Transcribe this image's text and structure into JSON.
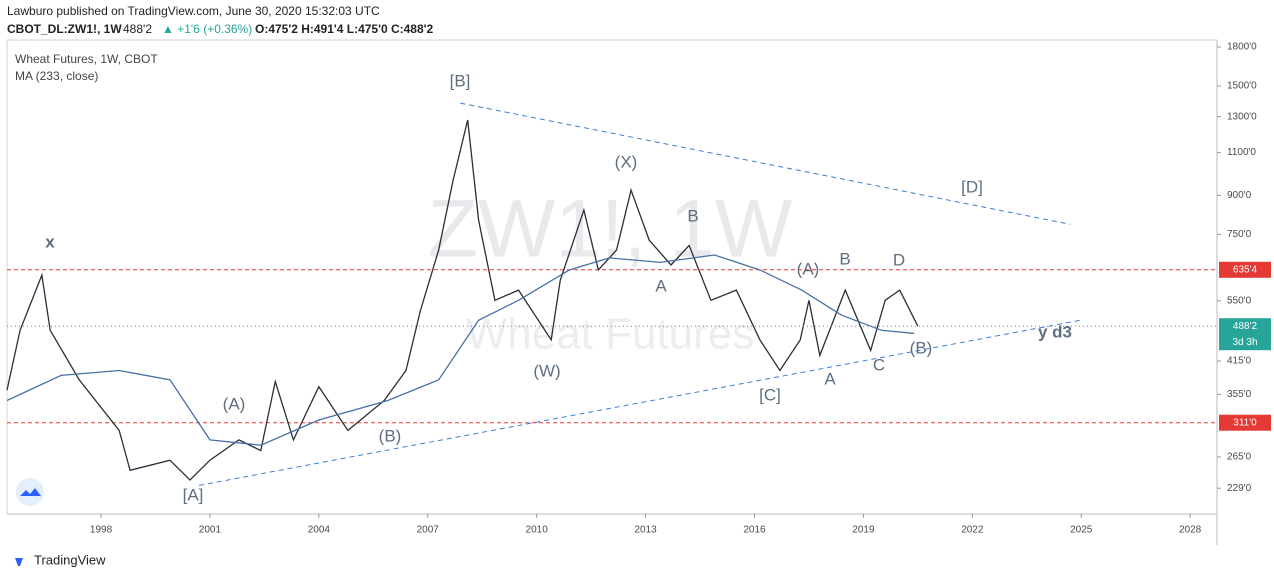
{
  "header": {
    "publisher": "Lawburo published on TradingView.com, June 30, 2020 15:32:03 UTC",
    "symbol": "CBOT_DL:ZW1!, 1W",
    "last": "488'2",
    "change": "▲ +1'6 (+0.36%)",
    "ohlc": "O:475'2 H:491'4 L:475'0 C:488'2"
  },
  "legend": {
    "title": "Wheat Futures, 1W, CBOT",
    "indicator": "MA (233, close)"
  },
  "watermark": {
    "symbol": "ZW1!, 1W",
    "name": "Wheat Futures"
  },
  "footer": {
    "brand": "TradingView"
  },
  "annotations": [
    "x",
    "[B]",
    "(X)",
    "B",
    "[D]",
    "(A)",
    "B",
    "D",
    "A",
    "(W)",
    "[C]",
    "A",
    "C",
    "(B)",
    "y d3",
    "(A)",
    "(B)",
    "[A]"
  ],
  "chart_data": {
    "type": "line",
    "log_scale": true,
    "grid": false,
    "xlim": [
      1995.41,
      2028.74
    ],
    "ylim": [
      203,
      1860
    ],
    "xticks": [
      1998,
      2001,
      2004,
      2007,
      2010,
      2013,
      2016,
      2019,
      2022,
      2025,
      2028
    ],
    "yticks": [
      {
        "value": 1800,
        "label": "1800'0"
      },
      {
        "value": 1500,
        "label": "1500'0"
      },
      {
        "value": 1300,
        "label": "1300'0"
      },
      {
        "value": 1100,
        "label": "1100'0"
      },
      {
        "value": 900,
        "label": "900'0"
      },
      {
        "value": 750,
        "label": "750'0"
      },
      {
        "value": 550,
        "label": "550'0"
      },
      {
        "value": 415,
        "label": "415'0"
      },
      {
        "value": 355,
        "label": "355'0"
      },
      {
        "value": 265,
        "label": "265'0"
      },
      {
        "value": 229,
        "label": "229'0"
      }
    ],
    "series": [
      {
        "name": "ZW1!",
        "color": "#2a2e39",
        "x": [
          1995.41,
          1995.77,
          1996.37,
          1996.6,
          1997.4,
          1998.5,
          1998.8,
          1999.9,
          2000.45,
          2001.0,
          2001.8,
          2002.4,
          2002.8,
          2003.3,
          2004.0,
          2004.8,
          2005.8,
          2006.4,
          2006.8,
          2007.3,
          2007.7,
          2008.1,
          2008.4,
          2008.85,
          2009.5,
          2010.4,
          2010.65,
          2011.3,
          2011.7,
          2012.2,
          2012.6,
          2013.1,
          2013.7,
          2014.2,
          2014.8,
          2015.5,
          2016.15,
          2016.7,
          2017.26,
          2017.5,
          2017.8,
          2018.5,
          2019.2,
          2019.6,
          2020.0,
          2020.5
        ],
        "values": [
          362,
          479,
          620,
          479,
          380,
          300,
          249,
          261,
          238,
          261,
          287,
          273,
          377,
          287,
          368,
          300,
          345,
          397,
          526,
          697,
          967,
          1280,
          802,
          551,
          578,
          458,
          605,
          840,
          635,
          697,
          922,
          730,
          650,
          712,
          551,
          578,
          458,
          397,
          458,
          551,
          426,
          578,
          436,
          551,
          578,
          488.25
        ]
      },
      {
        "name": "MA (233, close)",
        "color": "#4a6fa5",
        "x": [
          1995.41,
          1996.9,
          1998.5,
          1999.9,
          2001.0,
          2002.4,
          2004.0,
          2005.9,
          2007.3,
          2008.4,
          2009.5,
          2010.9,
          2012.0,
          2013.4,
          2014.9,
          2016.15,
          2017.3,
          2018.4,
          2019.5,
          2020.4
        ],
        "values": [
          345,
          388,
          397,
          380,
          287,
          280,
          315,
          345,
          380,
          502,
          551,
          635,
          672,
          658,
          681,
          635,
          578,
          514,
          479,
          472
        ]
      }
    ],
    "hlines": [
      {
        "value": 635.5,
        "label": "635'4",
        "color": "#e53935"
      },
      {
        "value": 311,
        "label": "311'0",
        "color": "#e53935"
      }
    ],
    "last_price": {
      "value": 488.25,
      "label": "488'2",
      "countdown": "3d 3h",
      "color": "#26a69a"
    },
    "trendlines": [
      {
        "x": [
          2007.9,
          2024.7
        ],
        "y": [
          1385,
          786
        ],
        "color": "#3b7dd8"
      },
      {
        "x": [
          2000.7,
          2024.97
        ],
        "y": [
          232,
          502
        ],
        "color": "#3b7dd8"
      }
    ]
  }
}
